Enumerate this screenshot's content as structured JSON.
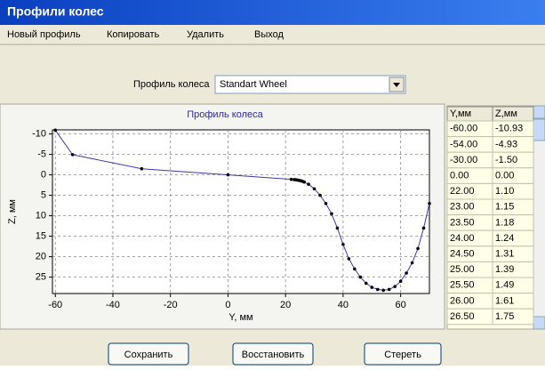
{
  "window": {
    "title": "Профили колес"
  },
  "menu": [
    "Новый профиль",
    "Копировать",
    "Удалить",
    "Выход"
  ],
  "profile_selector": {
    "label": "Профиль колеса",
    "value": "Standart Wheel"
  },
  "chart_data": {
    "type": "line",
    "title": "Профиль колеса",
    "x_label": "Y, мм",
    "y_label": "Z, мм",
    "x": [
      -60,
      -54,
      -30,
      0,
      22,
      23,
      23.5,
      24,
      24.5,
      25,
      25.5,
      26,
      26.5,
      28,
      30,
      32,
      34,
      36,
      38,
      40,
      42,
      44,
      46,
      48,
      50,
      52,
      54,
      56,
      58,
      60,
      62,
      64,
      66,
      68,
      70
    ],
    "values": [
      -10.93,
      -4.93,
      -1.5,
      0,
      1.1,
      1.15,
      1.18,
      1.24,
      1.31,
      1.39,
      1.49,
      1.61,
      1.75,
      2.3,
      3.4,
      5,
      7,
      9.5,
      13,
      17,
      20.5,
      23,
      25,
      26.5,
      27.5,
      28,
      28.2,
      28,
      27.3,
      26,
      24,
      21.5,
      18,
      13,
      7
    ],
    "color": "#3a3aa8",
    "marker_color": "#000000",
    "xlim": [
      -61,
      70
    ],
    "ylim": [
      -11,
      29
    ],
    "y_inverted": true,
    "xticks": [
      -60,
      -40,
      -20,
      0,
      20,
      40,
      60
    ],
    "yticks": [
      -10,
      -5,
      0,
      5,
      10,
      15,
      20,
      25
    ],
    "grid": true
  },
  "table": {
    "columns": [
      "Y,мм",
      "Z,мм"
    ],
    "rows": [
      [
        "-60.00",
        "-10.93"
      ],
      [
        "-54.00",
        "-4.93"
      ],
      [
        "-30.00",
        "-1.50"
      ],
      [
        "0.00",
        "0.00"
      ],
      [
        "22.00",
        "1.10"
      ],
      [
        "23.00",
        "1.15"
      ],
      [
        "23.50",
        "1.18"
      ],
      [
        "24.00",
        "1.24"
      ],
      [
        "24.50",
        "1.31"
      ],
      [
        "25.00",
        "1.39"
      ],
      [
        "25.50",
        "1.49"
      ],
      [
        "26.00",
        "1.61"
      ],
      [
        "26.50",
        "1.75"
      ]
    ]
  },
  "buttons": [
    "Сохранить",
    "Восстановить",
    "Стереть"
  ]
}
